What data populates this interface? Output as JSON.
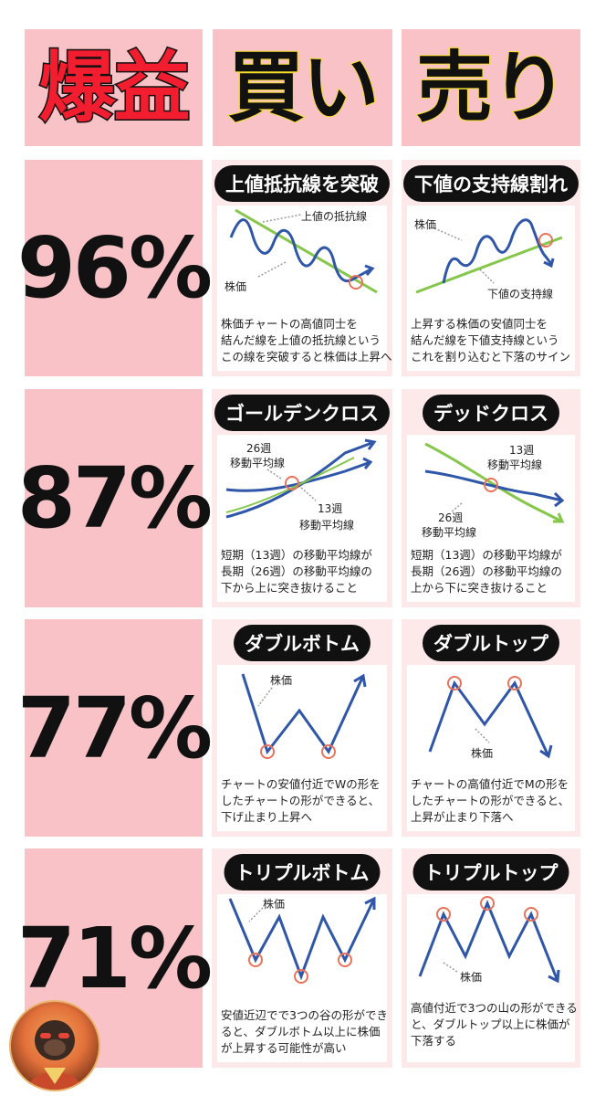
{
  "header": {
    "col1": "爆益",
    "col2": "買い",
    "col3": "売り"
  },
  "colors": {
    "pink": "#f8c2c6",
    "card": "#fde8ea",
    "blue": "#2f56a8",
    "green": "#86c74b",
    "orange": "#e8735a",
    "red": "#f21d2f",
    "yellow": "#f7df2c"
  },
  "rows": [
    {
      "percent": "96%",
      "buy": {
        "title": "上値抵抗線を突破",
        "labels": [
          "上値の抵抗線",
          "株価"
        ],
        "desc": [
          "株価チャートの高値同士を",
          "結んだ線を上値の抵抗線という",
          "この線を突破すると株価は上昇へ"
        ]
      },
      "sell": {
        "title": "下値の支持線割れ",
        "labels": [
          "株価",
          "下値の支持線"
        ],
        "desc": [
          "上昇する株価の安値同士を",
          "結んだ線を下値支持線という",
          "これを割り込むと下落のサイン"
        ]
      }
    },
    {
      "percent": "87%",
      "buy": {
        "title": "ゴールデンクロス",
        "labels": [
          "26週",
          "移動平均線",
          "13週",
          "移動平均線"
        ],
        "desc": [
          "短期（13週）の移動平均線が",
          "長期（26週）の移動平均線の",
          "下から上に突き抜けること"
        ]
      },
      "sell": {
        "title": "デッドクロス",
        "labels": [
          "13週",
          "移動平均線",
          "26週",
          "移動平均線"
        ],
        "desc": [
          "短期（13週）の移動平均線が",
          "長期（26週）の移動平均線の",
          "上から下に突き抜けること"
        ]
      }
    },
    {
      "percent": "77%",
      "buy": {
        "title": "ダブルボトム",
        "labels": [
          "株価"
        ],
        "desc": [
          "チャートの安値付近でWの形を",
          "したチャートの形ができると、",
          "下げ止まり上昇へ"
        ]
      },
      "sell": {
        "title": "ダブルトップ",
        "labels": [
          "株価"
        ],
        "desc": [
          "チャートの高値付近でMの形を",
          "したチャートの形ができると、",
          "上昇が止まり下落へ"
        ]
      }
    },
    {
      "percent": "71%",
      "buy": {
        "title": "トリプルボトム",
        "labels": [
          "株価"
        ],
        "desc": [
          "安値近辺でで3つの谷の形ができ",
          "ると、ダブルボトム以上に株価",
          "が上昇する可能性が高い"
        ]
      },
      "sell": {
        "title": "トリプルトップ",
        "labels": [
          "株価"
        ],
        "desc": [
          "高値付近で3つの山の形ができる",
          "と、ダブルトップ以上に株価が",
          "下落する"
        ]
      }
    }
  ]
}
